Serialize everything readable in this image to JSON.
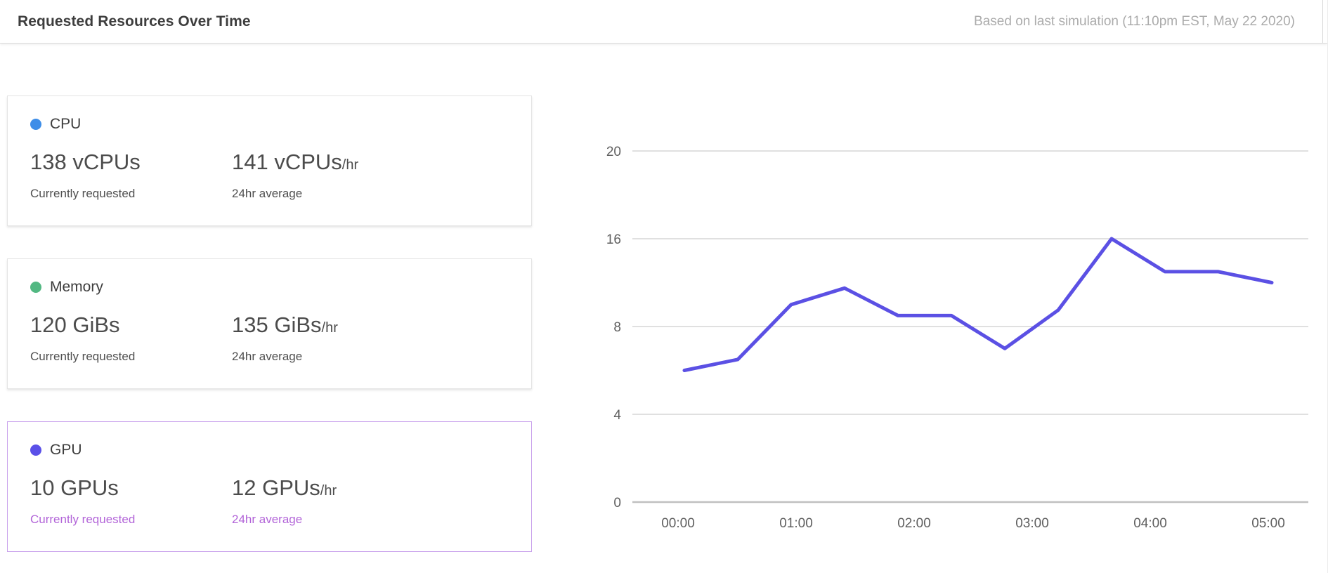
{
  "header": {
    "title": "Requested Resources Over Time",
    "note": "Based on last simulation (11:10pm EST, May 22 2020)"
  },
  "cards": [
    {
      "id": "cpu",
      "label": "CPU",
      "dot_color": "#3d8de8",
      "selected": false,
      "current": {
        "value": "138 vCPUs",
        "sub": "Currently requested"
      },
      "average": {
        "value": "141 vCPUs",
        "suffix": "/hr",
        "sub": "24hr average"
      }
    },
    {
      "id": "memory",
      "label": "Memory",
      "dot_color": "#52b882",
      "selected": false,
      "current": {
        "value": "120 GiBs",
        "sub": "Currently requested"
      },
      "average": {
        "value": "135 GiBs",
        "suffix": "/hr",
        "sub": "24hr average"
      }
    },
    {
      "id": "gpu",
      "label": "GPU",
      "dot_color": "#5a50e8",
      "selected": true,
      "current": {
        "value": "10 GPUs",
        "sub": "Currently requested"
      },
      "average": {
        "value": "12 GPUs",
        "suffix": "/hr",
        "sub": "24hr average"
      }
    }
  ],
  "colors": {
    "selected_border": "#c9a1ec",
    "selected_text": "#b264d8",
    "grid_line": "#d6d6d6",
    "axis_line": "#c0c0c0",
    "tick_text": "#5f5f5f",
    "series_line": "#5b50e4"
  },
  "chart_data": {
    "type": "line",
    "title": "",
    "xlabel": "",
    "ylabel": "",
    "legend": "none",
    "grid": "horizontal",
    "x_tick_labels": [
      "00:00",
      "01:00",
      "02:00",
      "03:00",
      "04:00",
      "05:00"
    ],
    "x_range_hours": [
      0,
      5
    ],
    "y_ticks": [
      0,
      4,
      8,
      16,
      20
    ],
    "y_tick_spacing": "equal pixel spacing per tick (non-linear value axis)",
    "points_evenly_spaced": true,
    "series": [
      {
        "name": "GPU",
        "color": "#5b50e4",
        "values": [
          6,
          6.5,
          10,
          11.5,
          9,
          9,
          7,
          9.5,
          16,
          13,
          13,
          12
        ]
      }
    ]
  }
}
